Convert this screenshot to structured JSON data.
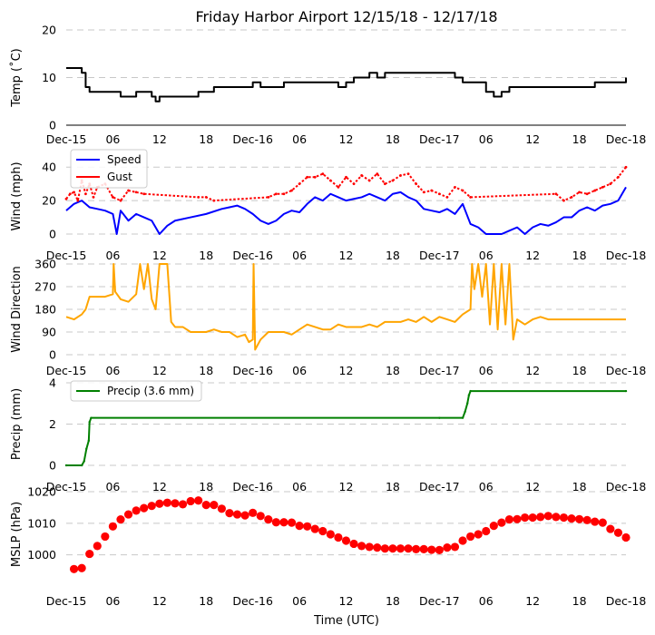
{
  "chart_data": {
    "title": "Friday Harbor Airport 12/15/18 - 12/17/18",
    "xlabel": "Time (UTC)",
    "x_range_hours": [
      0,
      72
    ],
    "x_ticks": [
      {
        "h": 0,
        "label": "Dec-15"
      },
      {
        "h": 6,
        "label": "06"
      },
      {
        "h": 12,
        "label": "12"
      },
      {
        "h": 18,
        "label": "18"
      },
      {
        "h": 24,
        "label": "Dec-16"
      },
      {
        "h": 30,
        "label": "06"
      },
      {
        "h": 36,
        "label": "12"
      },
      {
        "h": 42,
        "label": "18"
      },
      {
        "h": 48,
        "label": "Dec-17"
      },
      {
        "h": 54,
        "label": "06"
      },
      {
        "h": 60,
        "label": "12"
      },
      {
        "h": 66,
        "label": "18"
      },
      {
        "h": 72,
        "label": "Dec-18"
      }
    ],
    "panels": [
      {
        "id": "temp",
        "type": "line",
        "ylabel": "Temp ($^\\circ$C)",
        "ylabel_text": "Temp (˚C)",
        "ylim": [
          0,
          20
        ],
        "yticks": [
          0,
          10,
          20
        ],
        "baseline": true,
        "series": [
          {
            "name": "Temp",
            "color": "#000000",
            "step": true,
            "x": [
              0,
              1.5,
              2,
              2.5,
              3,
              6,
              7,
              9,
              10,
              11,
              11.5,
              12,
              16,
              17,
              19,
              20,
              24,
              25,
              26,
              27,
              28,
              30,
              32,
              34,
              35,
              36,
              37,
              38,
              39,
              40,
              41,
              43,
              44,
              46,
              48,
              50,
              51,
              52,
              54,
              55,
              56,
              57,
              58,
              60,
              62,
              64,
              66,
              68,
              70,
              72
            ],
            "y": [
              12,
              12,
              11,
              8,
              7,
              7,
              6,
              7,
              7,
              6,
              5,
              6,
              6,
              7,
              8,
              8,
              9,
              8,
              8,
              8,
              9,
              9,
              9,
              9,
              8,
              9,
              10,
              10,
              11,
              10,
              11,
              11,
              11,
              11,
              11,
              10,
              9,
              9,
              7,
              6,
              7,
              8,
              8,
              8,
              8,
              8,
              8,
              9,
              9,
              10
            ]
          }
        ]
      },
      {
        "id": "wind",
        "type": "line",
        "ylabel": "Wind (mph)",
        "ylim": [
          0,
          45
        ],
        "yticks": [
          0,
          20,
          40
        ],
        "legend": [
          {
            "name": "Speed",
            "color": "#0000ff"
          },
          {
            "name": "Gust",
            "color": "#ff0000"
          }
        ],
        "series": [
          {
            "name": "Speed",
            "color": "#0000ff",
            "x": [
              0,
              1,
              2,
              3,
              4,
              5,
              6,
              6.5,
              7,
              8,
              9,
              10,
              11,
              12,
              13,
              14,
              16,
              18,
              20,
              22,
              23,
              24,
              25,
              26,
              27,
              28,
              29,
              30,
              31,
              32,
              33,
              34,
              35,
              36,
              37,
              38,
              39,
              40,
              41,
              42,
              43,
              44,
              45,
              46,
              47,
              48,
              49,
              50,
              51,
              52,
              53,
              54,
              55,
              56,
              57,
              58,
              59,
              60,
              61,
              62,
              63,
              64,
              65,
              66,
              67,
              68,
              69,
              70,
              71,
              72
            ],
            "y": [
              14,
              18,
              20,
              16,
              15,
              14,
              12,
              0,
              14,
              8,
              12,
              10,
              8,
              0,
              5,
              8,
              10,
              12,
              15,
              17,
              15,
              12,
              8,
              6,
              8,
              12,
              14,
              13,
              18,
              22,
              20,
              24,
              22,
              20,
              21,
              22,
              24,
              22,
              20,
              24,
              25,
              22,
              20,
              15,
              14,
              13,
              15,
              12,
              18,
              6,
              4,
              0,
              0,
              0,
              2,
              4,
              0,
              4,
              6,
              5,
              7,
              10,
              10,
              14,
              16,
              14,
              17,
              18,
              20,
              28
            ]
          },
          {
            "name": "Gust",
            "color": "#ff0000",
            "sparse": true,
            "x": [
              0,
              0.5,
              1,
              1.5,
              2,
              2.5,
              3,
              3.5,
              4,
              5,
              6,
              7,
              8,
              9,
              10,
              17,
              18,
              19,
              26,
              27,
              28,
              29,
              30,
              31,
              32,
              33,
              34,
              35,
              36,
              37,
              38,
              39,
              40,
              41,
              42,
              43,
              44,
              45,
              46,
              47,
              48,
              49,
              50,
              51,
              52,
              63,
              64,
              65,
              66,
              67,
              68,
              69,
              70,
              71,
              72
            ],
            "y": [
              21,
              24,
              25,
              20,
              32,
              24,
              30,
              22,
              28,
              30,
              22,
              20,
              26,
              25,
              24,
              22,
              22,
              20,
              22,
              24,
              24,
              26,
              30,
              34,
              34,
              36,
              32,
              28,
              34,
              30,
              35,
              32,
              36,
              30,
              32,
              35,
              36,
              30,
              25,
              26,
              24,
              22,
              28,
              26,
              22,
              24,
              20,
              22,
              25,
              24,
              26,
              28,
              30,
              34,
              40
            ]
          }
        ]
      },
      {
        "id": "wdir",
        "type": "line",
        "ylabel": "Wind Direction",
        "ylim": [
          0,
          360
        ],
        "yticks": [
          0,
          90,
          180,
          270,
          360
        ],
        "series": [
          {
            "name": "Direction",
            "color": "#ffa500",
            "x": [
              0,
              1,
              2,
              2.5,
              3,
              4,
              5,
              6,
              6.1,
              6.3,
              7,
              8,
              9,
              9.5,
              10,
              10.5,
              11,
              11.5,
              12,
              12.5,
              13,
              13.5,
              14,
              15,
              16,
              17,
              18,
              19,
              20,
              21,
              22,
              23,
              23.5,
              24,
              24.1,
              24.3,
              25,
              26,
              27,
              28,
              29,
              30,
              31,
              32,
              33,
              34,
              35,
              36,
              37,
              38,
              39,
              40,
              41,
              42,
              43,
              44,
              45,
              46,
              47,
              48,
              49,
              50,
              51,
              52,
              52.2,
              52.5,
              53,
              53.5,
              54,
              54.5,
              55,
              55.5,
              56,
              56.5,
              57,
              57.5,
              58,
              59,
              60,
              61,
              62,
              63,
              64,
              65,
              66,
              67,
              68,
              69,
              70,
              71,
              72
            ],
            "y": [
              150,
              140,
              160,
              180,
              230,
              230,
              230,
              240,
              360,
              250,
              220,
              210,
              240,
              360,
              260,
              360,
              220,
              180,
              360,
              360,
              360,
              130,
              110,
              110,
              90,
              90,
              90,
              100,
              90,
              90,
              70,
              80,
              50,
              60,
              360,
              20,
              60,
              90,
              90,
              90,
              80,
              100,
              120,
              110,
              100,
              100,
              120,
              110,
              110,
              110,
              120,
              110,
              130,
              130,
              130,
              140,
              130,
              150,
              130,
              150,
              140,
              130,
              160,
              180,
              360,
              260,
              360,
              230,
              360,
              120,
              360,
              100,
              360,
              120,
              360,
              60,
              140,
              120,
              140,
              150,
              140,
              140,
              140,
              140,
              140,
              140,
              140,
              140,
              140,
              140,
              140
            ]
          }
        ]
      },
      {
        "id": "precip",
        "type": "line",
        "ylabel": "Precip (mm)",
        "ylim": [
          0,
          4
        ],
        "yticks": [
          0,
          2,
          4
        ],
        "legend": [
          {
            "name": "Precip (3.6 mm)",
            "color": "#008000"
          }
        ],
        "series": [
          {
            "name": "Precip (3.6 mm)",
            "color": "#008000",
            "x": [
              0,
              2,
              2.3,
              2.6,
              2.9,
              3.0,
              3.2,
              48,
              51,
              51.3,
              51.6,
              51.8,
              52,
              72
            ],
            "y": [
              0,
              0,
              0.2,
              0.8,
              1.2,
              2.1,
              2.3,
              2.3,
              2.3,
              2.6,
              3.0,
              3.4,
              3.6,
              3.6
            ]
          }
        ]
      },
      {
        "id": "mslp",
        "type": "scatter",
        "ylabel": "MSLP (hPa)",
        "ylim": [
          993,
          1020
        ],
        "yticks": [
          1000,
          1010,
          1020
        ],
        "series": [
          {
            "name": "MSLP",
            "color": "#ff0000",
            "x": [
              1,
              2,
              3,
              4,
              5,
              6,
              7,
              8,
              9,
              10,
              11,
              12,
              13,
              14,
              15,
              16,
              17,
              18,
              19,
              20,
              21,
              22,
              23,
              24,
              25,
              26,
              27,
              28,
              29,
              30,
              31,
              32,
              33,
              34,
              35,
              36,
              37,
              38,
              39,
              40,
              41,
              42,
              43,
              44,
              45,
              46,
              47,
              48,
              49,
              50,
              51,
              52,
              53,
              54,
              55,
              56,
              57,
              58,
              59,
              60,
              61,
              62,
              63,
              64,
              65,
              66,
              67,
              68,
              69,
              70,
              71,
              72
            ],
            "y": [
              995.5,
              995.8,
              1000.3,
              1002.8,
              1005.8,
              1009.0,
              1011.2,
              1012.8,
              1014.0,
              1014.8,
              1015.5,
              1016.2,
              1016.5,
              1016.3,
              1016.0,
              1017.0,
              1017.2,
              1015.8,
              1015.8,
              1014.6,
              1013.2,
              1012.8,
              1012.5,
              1013.3,
              1012.3,
              1011.2,
              1010.3,
              1010.3,
              1010.2,
              1009.2,
              1009.0,
              1008.2,
              1007.5,
              1006.5,
              1005.5,
              1004.5,
              1003.5,
              1002.8,
              1002.5,
              1002.3,
              1002.0,
              1002.0,
              1002.0,
              1002.0,
              1001.8,
              1001.8,
              1001.6,
              1001.5,
              1002.3,
              1002.5,
              1004.5,
              1005.8,
              1006.5,
              1007.5,
              1009.2,
              1010.2,
              1011.2,
              1011.3,
              1011.8,
              1011.8,
              1012.0,
              1012.3,
              1012.0,
              1011.8,
              1011.5,
              1011.3,
              1011.0,
              1010.5,
              1010.2,
              1008.2,
              1007.0,
              1005.5
            ]
          }
        ]
      }
    ]
  }
}
